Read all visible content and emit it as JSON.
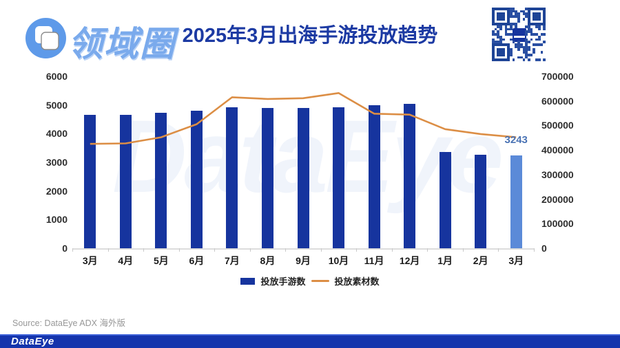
{
  "header": {
    "logo_text": "领域圈",
    "title": "2025年3月出海手游投放趋势"
  },
  "chart_data": {
    "type": "bar",
    "title": "2025年3月出海手游投放趋势",
    "categories": [
      "3月",
      "4月",
      "5月",
      "6月",
      "7月",
      "8月",
      "9月",
      "10月",
      "11月",
      "12月",
      "1月",
      "2月",
      "3月"
    ],
    "series": [
      {
        "name": "投放手游数",
        "type": "bar",
        "axis": "left",
        "color": "#16349e",
        "values": [
          4650,
          4660,
          4730,
          4800,
          4920,
          4900,
          4900,
          4920,
          4990,
          5040,
          3360,
          3270,
          3243
        ]
      },
      {
        "name": "投放素材数",
        "type": "line",
        "axis": "right",
        "color": "#dc8e45",
        "values": [
          425000,
          427000,
          452000,
          505000,
          615000,
          608000,
          611000,
          632000,
          548000,
          544000,
          485000,
          465000,
          452000
        ]
      }
    ],
    "left_axis": {
      "min": 0,
      "max": 6000,
      "step": 1000
    },
    "right_axis": {
      "min": 0,
      "max": 700000,
      "step": 100000
    },
    "highlight_index": 12,
    "highlight_color": "#5b8ad8",
    "data_labels": [
      {
        "index": 12,
        "text": "3243",
        "color": "#4a73b4"
      }
    ],
    "legend_position": "bottom",
    "grid": false
  },
  "legend": {
    "items": [
      {
        "label": "投放手游数",
        "color": "#16349e"
      },
      {
        "label": "投放素材数",
        "color": "#dc8e45"
      }
    ]
  },
  "watermark": "DataEye",
  "footer": {
    "source": "Source: DataEye ADX 海外版",
    "brand": "DataEye"
  },
  "colors": {
    "title": "#1c3aa3",
    "logo_blue": "#5e9ae9",
    "wordmark_blue": "#7aaaec",
    "bar_blue": "#16349e",
    "bar_light_blue": "#5b8ad8",
    "line_orange": "#dc8e45",
    "footer_bar": "#1434ac",
    "qr_blue": "#2a4fa2",
    "source_gray": "#979797"
  }
}
